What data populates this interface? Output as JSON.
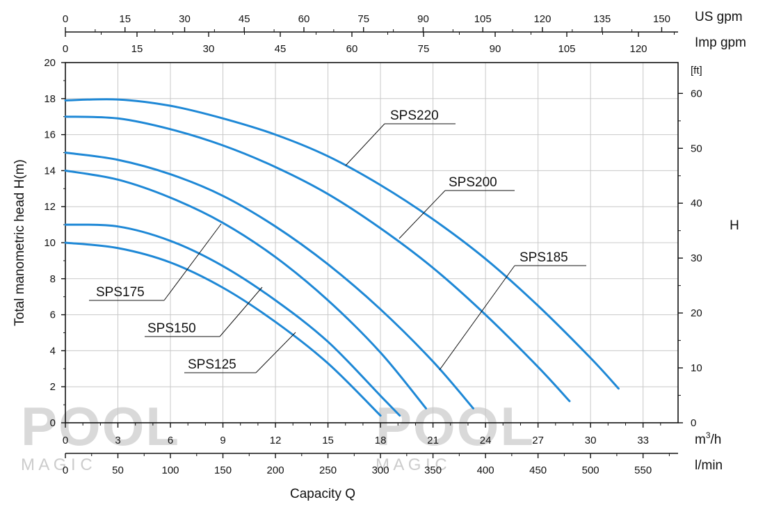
{
  "chart_data": {
    "type": "line",
    "ylabel": "Total manometric head H(m)",
    "xlabel": "Capacity Q",
    "xlim": [
      0,
      35
    ],
    "ylim": [
      0,
      20
    ],
    "grid": true,
    "x_ticks": [
      0,
      3,
      6,
      9,
      12,
      15,
      18,
      21,
      24,
      27,
      30,
      33
    ],
    "x_unit": "m³/h",
    "y_ticks": [
      0,
      2,
      4,
      6,
      8,
      10,
      12,
      14,
      16,
      18,
      20
    ],
    "y2_ticks": [
      0,
      10,
      20,
      30,
      40,
      50,
      60
    ],
    "y2_label_unit": "[ft]",
    "y2_title": "H",
    "lmin_ticks": [
      0,
      50,
      100,
      150,
      200,
      250,
      300,
      350,
      400,
      450,
      500,
      550
    ],
    "lmin_unit": "l/min",
    "usgpm_ticks": [
      0,
      15,
      30,
      45,
      60,
      75,
      90,
      105,
      120,
      135,
      150
    ],
    "usgpm_unit": "US gpm",
    "impgpm_ticks": [
      0,
      15,
      30,
      45,
      60,
      75,
      90,
      105,
      120
    ],
    "impgpm_unit": "Imp gpm",
    "series": [
      {
        "name": "SPS125",
        "x": [
          0,
          3,
          6,
          9,
          12,
          15,
          18
        ],
        "y": [
          10.0,
          9.7,
          8.9,
          7.5,
          5.6,
          3.3,
          0.4
        ]
      },
      {
        "name": "SPS150",
        "x": [
          0,
          3,
          6,
          9,
          12,
          15,
          18,
          19.1
        ],
        "y": [
          11.0,
          10.9,
          10.1,
          8.7,
          6.8,
          4.5,
          1.5,
          0.4
        ]
      },
      {
        "name": "SPS175",
        "x": [
          0,
          3,
          6,
          9,
          12,
          15,
          18,
          20.6
        ],
        "y": [
          14.0,
          13.5,
          12.5,
          11.1,
          9.2,
          6.8,
          3.9,
          0.8
        ]
      },
      {
        "name": "SPS185",
        "x": [
          0,
          3,
          6,
          9,
          12,
          15,
          18,
          21,
          23.3
        ],
        "y": [
          15.0,
          14.6,
          13.8,
          12.6,
          10.9,
          8.8,
          6.3,
          3.4,
          0.8
        ]
      },
      {
        "name": "SPS200",
        "x": [
          0,
          3,
          6,
          9,
          12,
          15,
          18,
          21,
          24,
          27,
          28.8
        ],
        "y": [
          17.0,
          16.9,
          16.3,
          15.4,
          14.2,
          12.7,
          10.8,
          8.6,
          6.0,
          3.1,
          1.2
        ]
      },
      {
        "name": "SPS220",
        "x": [
          0,
          3,
          6,
          9,
          12,
          15,
          18,
          21,
          24,
          27,
          30,
          31.6
        ],
        "y": [
          17.9,
          17.95,
          17.6,
          16.9,
          16.0,
          14.8,
          13.2,
          11.3,
          9.1,
          6.5,
          3.6,
          1.9
        ]
      }
    ],
    "colors": {
      "curve": "#1e88d6",
      "grid": "#c8c8c8",
      "axis": "#111111"
    }
  },
  "watermark": {
    "text": "POOL",
    "sub": "M A G I C"
  }
}
